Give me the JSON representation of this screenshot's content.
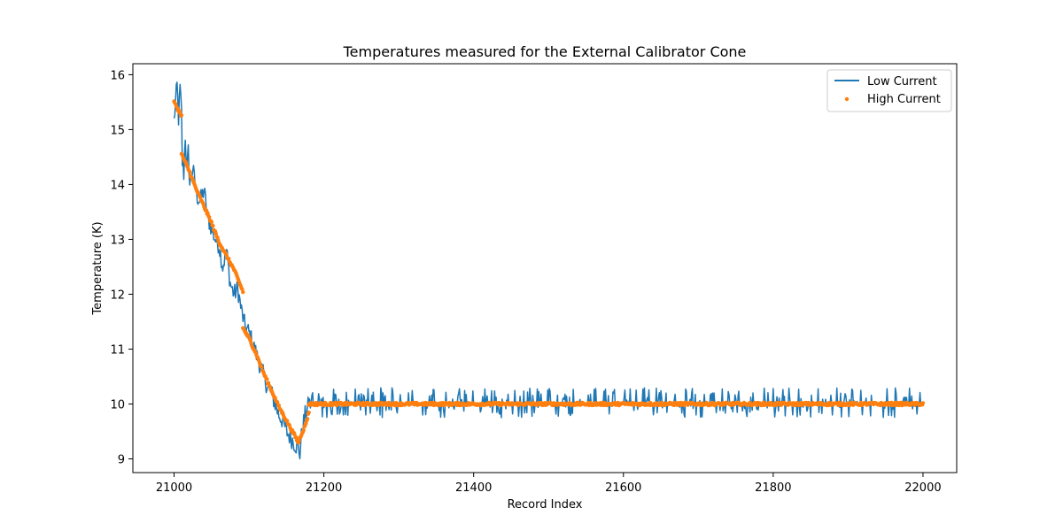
{
  "chart_data": {
    "type": "line",
    "title": "Temperatures measured for the External Calibrator Cone",
    "xlabel": "Record Index",
    "ylabel": "Temperature (K)",
    "xlim": [
      20945,
      22045
    ],
    "ylim": [
      8.75,
      16.2
    ],
    "xticks": [
      21000,
      21200,
      21400,
      21600,
      21800,
      22000
    ],
    "yticks": [
      9,
      10,
      11,
      12,
      13,
      14,
      15,
      16
    ],
    "legend": {
      "position": "top-right"
    },
    "series": [
      {
        "name": "Low Current",
        "kind": "line",
        "color": "#1f77b4",
        "anchors": [
          [
            21000,
            15.15
          ],
          [
            21002,
            15.5
          ],
          [
            21004,
            15.8
          ],
          [
            21006,
            15.2
          ],
          [
            21008,
            15.75
          ],
          [
            21010,
            15.3
          ],
          [
            21011,
            14.4
          ],
          [
            21013,
            14.2
          ],
          [
            21015,
            14.9
          ],
          [
            21017,
            14.2
          ],
          [
            21019,
            14.6
          ],
          [
            21021,
            14.0
          ],
          [
            21025,
            14.3
          ],
          [
            21030,
            13.8
          ],
          [
            21035,
            13.7
          ],
          [
            21040,
            13.9
          ],
          [
            21045,
            13.4
          ],
          [
            21050,
            13.2
          ],
          [
            21055,
            13.0
          ],
          [
            21060,
            12.9
          ],
          [
            21065,
            12.5
          ],
          [
            21070,
            12.8
          ],
          [
            21075,
            12.2
          ],
          [
            21080,
            12.0
          ],
          [
            21085,
            12.1
          ],
          [
            21090,
            11.7
          ],
          [
            21095,
            11.4
          ],
          [
            21100,
            11.3
          ],
          [
            21105,
            11.1
          ],
          [
            21110,
            10.9
          ],
          [
            21115,
            10.7
          ],
          [
            21120,
            10.5
          ],
          [
            21125,
            10.3
          ],
          [
            21130,
            10.2
          ],
          [
            21135,
            10.0
          ],
          [
            21140,
            9.8
          ],
          [
            21145,
            9.7
          ],
          [
            21150,
            9.5
          ],
          [
            21155,
            9.4
          ],
          [
            21160,
            9.3
          ],
          [
            21165,
            9.2
          ],
          [
            21168,
            9.1
          ],
          [
            21170,
            9.4
          ],
          [
            21172,
            9.6
          ],
          [
            21175,
            9.8
          ],
          [
            21180,
            10.0
          ],
          [
            22000,
            10.0
          ]
        ],
        "stable_start": 21180,
        "stable_mean": 10.0,
        "stable_noise_range": [
          9.75,
          10.3
        ]
      },
      {
        "name": "High Current",
        "kind": "scatter",
        "color": "#ff7f0e",
        "segments": [
          [
            [
              21000,
              15.5
            ],
            [
              21010,
              15.25
            ]
          ],
          [
            [
              21010,
              14.55
            ],
            [
              21020,
              14.25
            ],
            [
              21030,
              13.9
            ],
            [
              21040,
              13.6
            ],
            [
              21050,
              13.3
            ],
            [
              21060,
              12.95
            ],
            [
              21070,
              12.7
            ],
            [
              21080,
              12.45
            ],
            [
              21092,
              12.05
            ]
          ],
          [
            [
              21092,
              11.38
            ],
            [
              21100,
              11.2
            ],
            [
              21110,
              10.9
            ],
            [
              21120,
              10.55
            ],
            [
              21130,
              10.25
            ],
            [
              21140,
              9.95
            ],
            [
              21150,
              9.7
            ],
            [
              21160,
              9.45
            ],
            [
              21166,
              9.3
            ]
          ],
          [
            [
              21166,
              9.3
            ],
            [
              21170,
              9.45
            ],
            [
              21175,
              9.6
            ],
            [
              21180,
              9.85
            ]
          ],
          [
            [
              21180,
              10.0
            ],
            [
              22000,
              10.0
            ]
          ]
        ]
      }
    ]
  }
}
